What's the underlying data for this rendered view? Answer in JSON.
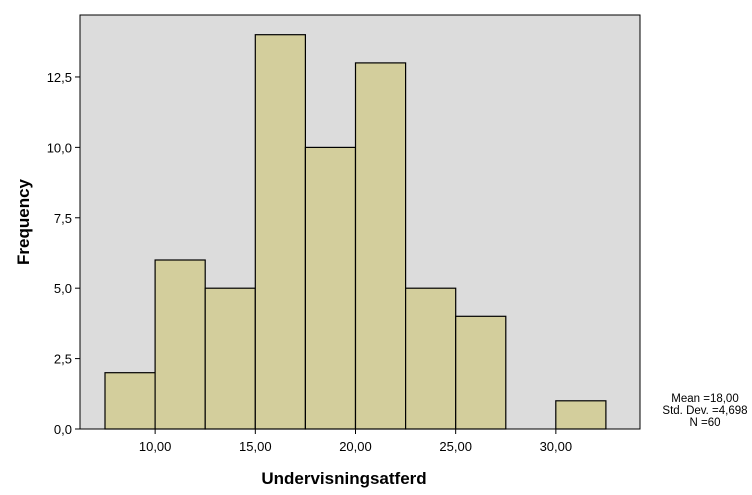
{
  "chart_data": {
    "type": "bar",
    "subtype": "histogram",
    "xlabel": "Undervisningsatferd",
    "ylabel": "Frequency",
    "bin_width": 2.5,
    "bins": [
      {
        "start": 7.5,
        "end": 10.0,
        "count": 2
      },
      {
        "start": 10.0,
        "end": 12.5,
        "count": 6
      },
      {
        "start": 12.5,
        "end": 15.0,
        "count": 5
      },
      {
        "start": 15.0,
        "end": 17.5,
        "count": 14
      },
      {
        "start": 17.5,
        "end": 20.0,
        "count": 10
      },
      {
        "start": 20.0,
        "end": 22.5,
        "count": 13
      },
      {
        "start": 22.5,
        "end": 25.0,
        "count": 5
      },
      {
        "start": 25.0,
        "end": 27.5,
        "count": 4
      },
      {
        "start": 27.5,
        "end": 30.0,
        "count": 0
      },
      {
        "start": 30.0,
        "end": 32.5,
        "count": 1
      }
    ],
    "xlim": [
      6.25,
      34.2
    ],
    "ylim": [
      0,
      14.7
    ],
    "x_ticks": [
      10,
      15,
      20,
      25,
      30
    ],
    "x_tick_labels": [
      "10,00",
      "15,00",
      "20,00",
      "25,00",
      "30,00"
    ],
    "y_ticks": [
      0,
      2.5,
      5,
      7.5,
      10,
      12.5
    ],
    "y_tick_labels": [
      "0,0",
      "2,5",
      "5,0",
      "7,5",
      "10,0",
      "12,5"
    ],
    "grid": false,
    "colors": {
      "bar_fill": "#d3ce9c",
      "bar_stroke": "#000000",
      "plot_bg": "#dcdcdc"
    },
    "stats": {
      "mean": "Mean =18,00",
      "std_dev": "Std. Dev. =4,698",
      "n": "N =60"
    }
  }
}
